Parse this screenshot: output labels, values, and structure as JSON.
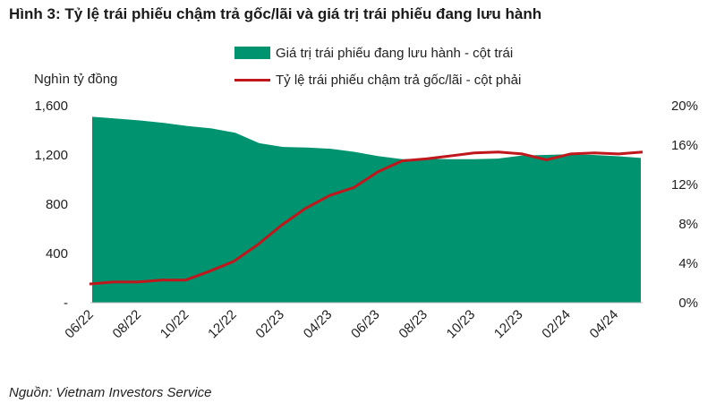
{
  "title": "Hình 3: Tỷ lệ trái phiếu chậm trả gốc/lãi và giá trị trái phiếu đang lưu hành",
  "source": "Nguồn: Vietnam Investors Service",
  "colors": {
    "area": "#00936F",
    "line": "#C0171C",
    "text": "#222222"
  },
  "chart_data": {
    "type": "area",
    "ylabel_left": "Nghìn tỷ đồng",
    "y_left_ticks": [
      "-",
      "400",
      "800",
      "1,200",
      "1,600"
    ],
    "y_left_range": [
      0,
      1600
    ],
    "y_right_ticks": [
      "0%",
      "4%",
      "8%",
      "12%",
      "16%",
      "20%"
    ],
    "y_right_range": [
      0,
      20
    ],
    "x_tick_labels": [
      "06/22",
      "08/22",
      "10/22",
      "12/22",
      "02/23",
      "04/23",
      "06/23",
      "08/23",
      "10/23",
      "12/23",
      "02/24",
      "04/24"
    ],
    "grid": false,
    "legend_position": "top",
    "series": [
      {
        "name": "Giá trị trái phiếu đang lưu hành - cột trái",
        "type": "area",
        "axis": "left",
        "x": [
          "06/22",
          "07/22",
          "08/22",
          "09/22",
          "10/22",
          "11/22",
          "12/22",
          "01/23",
          "02/23",
          "03/23",
          "04/23",
          "05/23",
          "06/23",
          "07/23",
          "08/23",
          "09/23",
          "10/23",
          "11/23",
          "12/23",
          "01/24",
          "02/24",
          "03/24",
          "04/24",
          "05/24"
        ],
        "values": [
          1510,
          1495,
          1480,
          1460,
          1435,
          1415,
          1380,
          1295,
          1265,
          1260,
          1250,
          1225,
          1190,
          1165,
          1170,
          1165,
          1165,
          1170,
          1195,
          1200,
          1205,
          1200,
          1190,
          1175
        ]
      },
      {
        "name": "Tỷ lệ trái phiếu chậm trả gốc/lãi - cột phải",
        "type": "line",
        "axis": "right",
        "x": [
          "06/22",
          "07/22",
          "08/22",
          "09/22",
          "10/22",
          "11/22",
          "12/22",
          "01/23",
          "02/23",
          "03/23",
          "04/23",
          "05/23",
          "06/23",
          "07/23",
          "08/23",
          "09/23",
          "10/23",
          "11/23",
          "12/23",
          "01/24",
          "02/24",
          "03/24",
          "04/24",
          "05/24"
        ],
        "values": [
          1.9,
          2.1,
          2.1,
          2.3,
          2.3,
          3.2,
          4.2,
          5.9,
          7.9,
          9.6,
          10.9,
          11.7,
          13.3,
          14.4,
          14.6,
          14.9,
          15.2,
          15.3,
          15.1,
          14.5,
          15.1,
          15.2,
          15.1,
          15.3
        ]
      }
    ]
  }
}
